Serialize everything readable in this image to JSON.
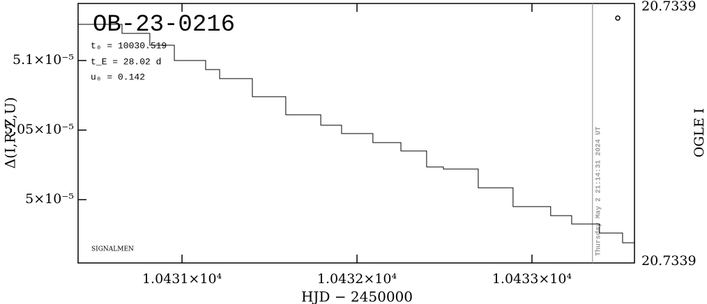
{
  "chart_data": {
    "type": "step",
    "title": "OB-23-0216",
    "annotations": [
      "t₀ = 10030.519",
      "t_E = 28.02 d",
      "u₀ = 0.142"
    ],
    "footer_note": "SIGNALMEN",
    "date_stamp": "Thursday May 2 21:14:31 2024 UT",
    "marker_x": 10433.346,
    "x_label": "HJD − 2450000",
    "y_label": "Δ(I,R-Z,U)",
    "y2_label": "OGLE I",
    "y2_top_label": "20.7339",
    "y2_bottom_label": "20.7339",
    "color": "#000000",
    "x": [
      10430.406,
      10430.657,
      10430.816,
      10430.956,
      10431.135,
      10431.215,
      10431.402,
      10431.593,
      10431.793,
      10431.912,
      10432.091,
      10432.251,
      10432.398,
      10432.494,
      10432.693,
      10432.892,
      10433.107,
      10433.227,
      10433.386,
      10433.518,
      10433.586
    ],
    "values": [
      5.126e-05,
      5.1195e-05,
      5.111e-05,
      5.1e-05,
      5.0935e-05,
      5.087e-05,
      5.074e-05,
      5.061e-05,
      5.0535e-05,
      5.0475e-05,
      5.041e-05,
      5.035e-05,
      5.0235e-05,
      5.022e-05,
      5.0085e-05,
      4.995e-05,
      4.9885e-05,
      4.9825e-05,
      4.976e-05,
      4.969e-05,
      4.969e-05
    ],
    "xlim": [
      10430.406,
      10433.586
    ],
    "ylim": [
      4.9545e-05,
      5.141e-05
    ],
    "xticks": [
      {
        "value": 10431,
        "label": "1.0431×10⁴"
      },
      {
        "value": 10432,
        "label": "1.0432×10⁴"
      },
      {
        "value": 10433,
        "label": "1.0433×10⁴"
      }
    ],
    "yticks": [
      {
        "value": 5.1e-05,
        "label": "5.1×10⁻⁵"
      },
      {
        "value": 5.05e-05,
        "label": "5.05×10⁻⁵"
      },
      {
        "value": 5e-05,
        "label": "5×10⁻⁵"
      }
    ]
  }
}
